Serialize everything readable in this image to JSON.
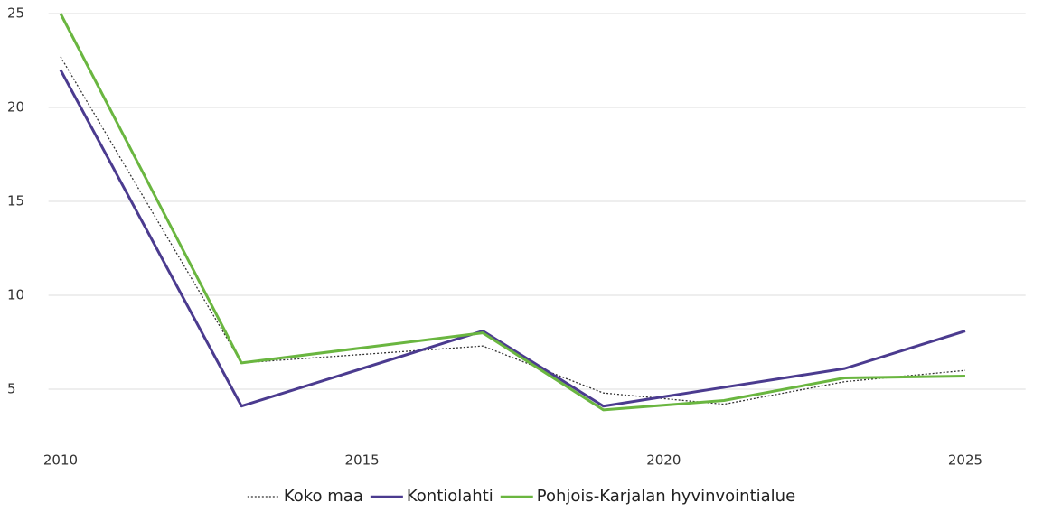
{
  "chart_data": {
    "type": "line",
    "x": [
      2010,
      2013,
      2017,
      2019,
      2021,
      2023,
      2025
    ],
    "series": [
      {
        "name": "Koko maa",
        "color": "#333333",
        "dash": true,
        "values": [
          22.7,
          6.4,
          7.3,
          4.8,
          4.2,
          5.4,
          6.0
        ]
      },
      {
        "name": "Kontiolahti",
        "color": "#4b3b8f",
        "values": [
          22,
          4.1,
          8.1,
          4.1,
          5.1,
          6.1,
          8.1
        ]
      },
      {
        "name": "Pohjois-Karjalan hyvinvointialue",
        "color": "#6ab640",
        "values": [
          25,
          6.4,
          8,
          3.9,
          4.4,
          5.6,
          5.7
        ]
      }
    ],
    "xlim": [
      2009.8,
      2026
    ],
    "xticks": [
      2010,
      2015,
      2020,
      2025
    ],
    "ylim": [
      3,
      25
    ],
    "yticks": [
      5,
      10,
      15,
      20,
      25
    ],
    "grid": true,
    "legend": "bottom"
  }
}
